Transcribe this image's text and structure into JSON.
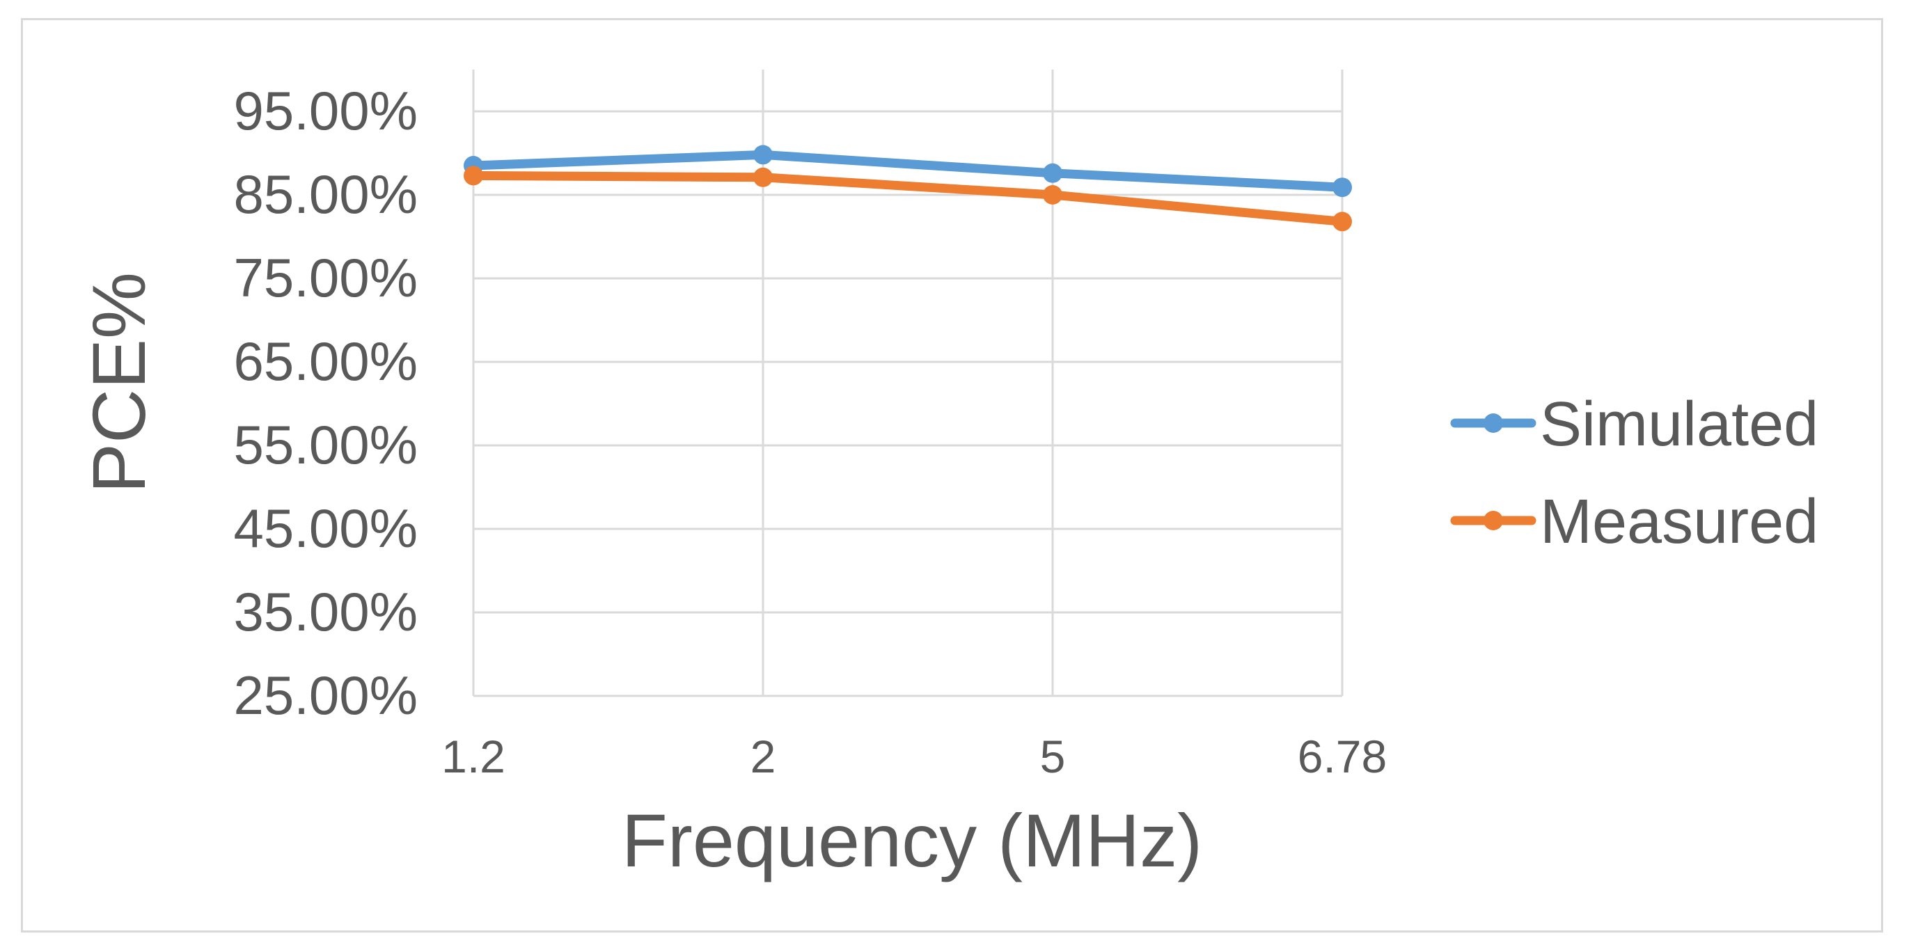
{
  "chart_data": {
    "type": "line",
    "title": "",
    "xlabel": "Frequency (MHz)",
    "ylabel": "PCE%",
    "categories": [
      "1.2",
      "2",
      "5",
      "6.78"
    ],
    "y_ticks": [
      "25.00%",
      "35.00%",
      "45.00%",
      "55.00%",
      "65.00%",
      "75.00%",
      "85.00%",
      "95.00%"
    ],
    "ylim": [
      25,
      100
    ],
    "grid": true,
    "legend_position": "right",
    "series": [
      {
        "name": "Simulated",
        "color": "#5b9bd5",
        "values": [
          88.5,
          89.8,
          87.6,
          85.9
        ]
      },
      {
        "name": "Measured",
        "color": "#ed7d31",
        "values": [
          87.3,
          87.1,
          85.0,
          81.8
        ]
      }
    ]
  }
}
